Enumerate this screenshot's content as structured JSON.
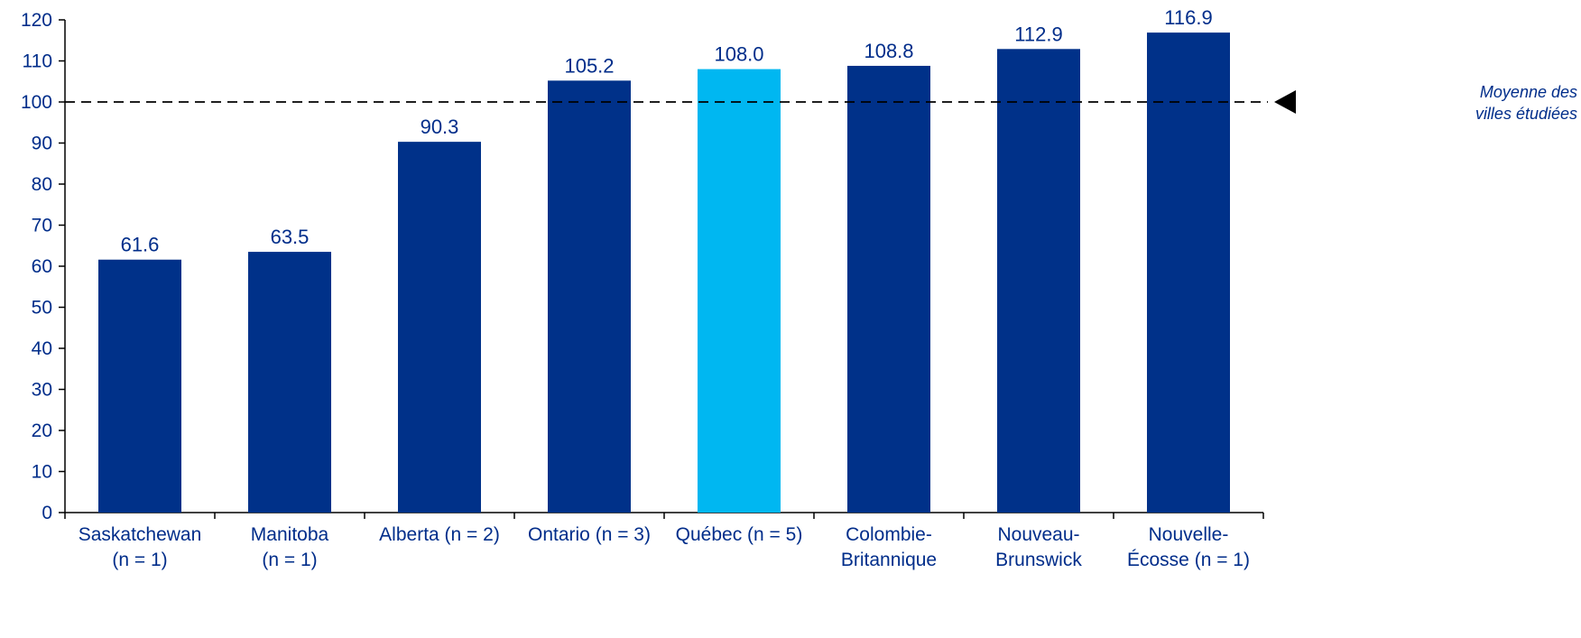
{
  "chart_data": {
    "type": "bar",
    "title": "",
    "xlabel": "",
    "ylabel": "",
    "categories": [
      [
        "Saskatchewan",
        "(n = 1)"
      ],
      [
        "Manitoba",
        "(n = 1)"
      ],
      [
        "Alberta (n = 2)"
      ],
      [
        "Ontario (n = 3)"
      ],
      [
        "Québec (n = 5)"
      ],
      [
        "Colombie-",
        "Britannique"
      ],
      [
        "Nouveau-",
        "Brunswick"
      ],
      [
        "Nouvelle-",
        "Écosse (n = 1)"
      ]
    ],
    "values": [
      61.6,
      63.5,
      90.3,
      105.2,
      108.0,
      108.8,
      112.9,
      116.9
    ],
    "value_labels": [
      "61.6",
      "63.5",
      "90.3",
      "105.2",
      "108.0",
      "108.8",
      "112.9",
      "116.9"
    ],
    "highlight_index": 4,
    "ylim": [
      0,
      120
    ],
    "yticks": [
      0,
      10,
      20,
      30,
      40,
      50,
      60,
      70,
      80,
      90,
      100,
      110,
      120
    ],
    "grid": false,
    "legend": "none",
    "reference_line": {
      "value": 100,
      "style": "dashed",
      "label_lines": [
        "Moyenne des",
        "villes étudiées"
      ],
      "marker": "left-pointing-triangle"
    }
  },
  "colors": {
    "bar": "#003189",
    "highlight_bar": "#00B7F1",
    "text": "#002D8A",
    "axis": "#000000",
    "reference_line": "#000000"
  }
}
